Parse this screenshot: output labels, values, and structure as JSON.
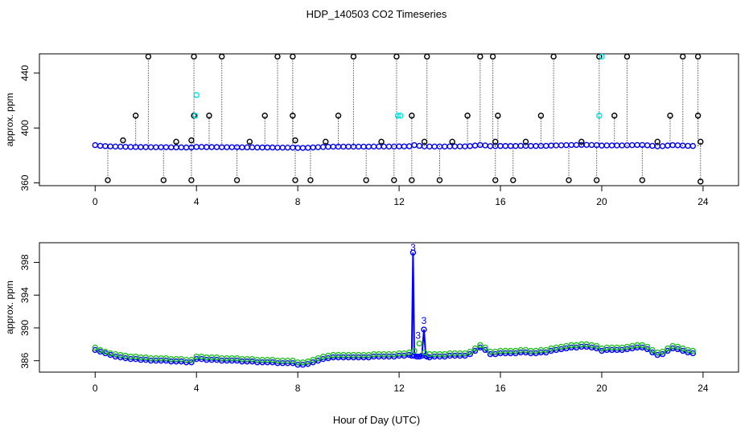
{
  "title": "HDP_140503  CO2 Timeseries",
  "xlabel": "Hour of Day (UTC)",
  "chart_data": [
    {
      "type": "scatter",
      "ylabel": "approx. ppm",
      "xlim": [
        -2.2,
        25.4
      ],
      "ylim": [
        358,
        454
      ],
      "xticks": [
        0,
        4,
        8,
        12,
        16,
        20,
        24
      ],
      "yticks": [
        360,
        400,
        440
      ],
      "series": [
        {
          "color": "#0000ff",
          "marker": "circle",
          "x": [
            0.0,
            0.2,
            0.4,
            0.6,
            0.8,
            1.0,
            1.2,
            1.4,
            1.6,
            1.8,
            2.0,
            2.2,
            2.4,
            2.6,
            2.8,
            3.0,
            3.2,
            3.4,
            3.6,
            3.8,
            4.0,
            4.2,
            4.4,
            4.6,
            4.8,
            5.0,
            5.2,
            5.4,
            5.6,
            5.8,
            6.0,
            6.2,
            6.4,
            6.6,
            6.8,
            7.0,
            7.2,
            7.4,
            7.6,
            7.8,
            8.0,
            8.2,
            8.4,
            8.6,
            8.8,
            9.0,
            9.2,
            9.4,
            9.6,
            9.8,
            10.0,
            10.2,
            10.4,
            10.6,
            10.8,
            11.0,
            11.2,
            11.4,
            11.6,
            11.8,
            12.0,
            12.2,
            12.4,
            12.6,
            12.8,
            13.0,
            13.2,
            13.4,
            13.6,
            13.8,
            14.0,
            14.2,
            14.4,
            14.6,
            14.8,
            15.0,
            15.2,
            15.4,
            15.6,
            15.8,
            16.0,
            16.2,
            16.4,
            16.6,
            16.8,
            17.0,
            17.2,
            17.4,
            17.6,
            17.8,
            18.0,
            18.2,
            18.4,
            18.6,
            18.8,
            19.0,
            19.2,
            19.4,
            19.6,
            19.8,
            20.0,
            20.2,
            20.4,
            20.6,
            20.8,
            21.0,
            21.2,
            21.4,
            21.6,
            21.8,
            22.0,
            22.2,
            22.4,
            22.6,
            22.8,
            23.0,
            23.2,
            23.4,
            23.6
          ],
          "y": [
            387.5,
            387.0,
            386.8,
            386.6,
            386.5,
            386.4,
            386.3,
            386.2,
            386.2,
            386.1,
            386.1,
            386.0,
            386.0,
            386.0,
            386.0,
            385.9,
            385.9,
            385.9,
            385.8,
            385.8,
            386.2,
            386.2,
            386.1,
            386.1,
            386.1,
            386.0,
            386.0,
            386.0,
            386.0,
            385.9,
            385.9,
            385.9,
            385.8,
            385.8,
            385.8,
            385.8,
            385.7,
            385.7,
            385.7,
            385.7,
            385.5,
            385.5,
            385.6,
            385.8,
            386.0,
            386.2,
            386.3,
            386.4,
            386.4,
            386.4,
            386.4,
            386.4,
            386.4,
            386.4,
            386.4,
            386.5,
            386.5,
            386.5,
            386.5,
            386.5,
            386.6,
            386.6,
            386.7,
            387.5,
            387.0,
            386.6,
            386.5,
            386.5,
            386.5,
            386.5,
            386.6,
            386.6,
            386.6,
            386.6,
            386.8,
            387.2,
            387.6,
            387.3,
            386.8,
            386.8,
            386.9,
            386.9,
            386.9,
            386.9,
            387.0,
            387.0,
            386.9,
            386.9,
            387.0,
            387.0,
            387.2,
            387.3,
            387.4,
            387.5,
            387.6,
            387.6,
            387.7,
            387.7,
            387.6,
            387.5,
            387.2,
            387.3,
            387.3,
            387.3,
            387.3,
            387.4,
            387.5,
            387.6,
            387.6,
            387.4,
            387.0,
            386.7,
            386.8,
            387.2,
            387.5,
            387.4,
            387.2,
            387.0,
            386.9
          ]
        },
        {
          "color": "#000000",
          "marker": "circle",
          "x": [
            0.5,
            1.1,
            1.6,
            2.1,
            2.7,
            3.2,
            3.8,
            3.8,
            3.9,
            3.9,
            4.5,
            5.0,
            5.6,
            6.1,
            6.7,
            7.2,
            7.8,
            7.8,
            7.9,
            7.9,
            8.5,
            9.1,
            9.6,
            10.2,
            10.7,
            11.3,
            11.8,
            11.9,
            12.5,
            12.5,
            13.0,
            13.1,
            13.6,
            14.1,
            14.7,
            15.2,
            15.7,
            15.8,
            15.8,
            15.9,
            16.5,
            17.0,
            17.6,
            18.1,
            18.7,
            19.2,
            19.8,
            19.9,
            20.5,
            21.0,
            21.6,
            22.2,
            22.7,
            23.2,
            23.8,
            23.8,
            23.9,
            23.9
          ],
          "y": [
            362,
            391,
            409,
            452,
            362,
            390,
            362,
            391,
            409,
            452,
            409,
            452,
            362,
            390,
            409,
            452,
            409,
            452,
            391,
            362,
            362,
            390,
            409,
            452,
            362,
            390,
            362,
            452,
            409,
            362,
            390,
            452,
            362,
            390,
            409,
            452,
            452,
            390,
            362,
            409,
            362,
            390,
            409,
            452,
            362,
            390,
            362,
            452,
            409,
            452,
            362,
            390,
            409,
            452,
            452,
            409,
            390,
            361
          ]
        },
        {
          "color": "#00e5e5",
          "marker": "circle",
          "x": [
            3.95,
            4.0,
            11.95,
            12.05,
            19.9,
            20.0
          ],
          "y": [
            409,
            424,
            409,
            409,
            409,
            452
          ]
        }
      ]
    },
    {
      "type": "line",
      "ylabel": "approx. ppm",
      "xlim": [
        -2.2,
        25.4
      ],
      "ylim": [
        384.6,
        400.4
      ],
      "xticks": [
        0,
        4,
        8,
        12,
        16,
        20,
        24
      ],
      "yticks": [
        386,
        390,
        394,
        398
      ],
      "annotations": [
        {
          "text": "3",
          "x": 12.55,
          "y": 399.2
        },
        {
          "text": "3",
          "x": 12.98,
          "y": 390.3
        },
        {
          "text": "3",
          "x": 12.75,
          "y": 388.5
        }
      ],
      "series": [
        {
          "color": "#0000ff",
          "marker": "circle",
          "x": [
            0.0,
            0.2,
            0.4,
            0.6,
            0.8,
            1.0,
            1.2,
            1.4,
            1.6,
            1.8,
            2.0,
            2.2,
            2.4,
            2.6,
            2.8,
            3.0,
            3.2,
            3.4,
            3.6,
            3.8,
            4.0,
            4.2,
            4.4,
            4.6,
            4.8,
            5.0,
            5.2,
            5.4,
            5.6,
            5.8,
            6.0,
            6.2,
            6.4,
            6.6,
            6.8,
            7.0,
            7.2,
            7.4,
            7.6,
            7.8,
            8.0,
            8.2,
            8.4,
            8.6,
            8.8,
            9.0,
            9.2,
            9.4,
            9.6,
            9.8,
            10.0,
            10.2,
            10.4,
            10.6,
            10.8,
            11.0,
            11.2,
            11.4,
            11.6,
            11.8,
            12.0,
            12.2,
            12.4,
            12.5,
            12.55,
            12.6,
            12.7,
            12.8,
            12.9,
            12.98,
            13.05,
            13.1,
            13.2,
            13.4,
            13.6,
            13.8,
            14.0,
            14.2,
            14.4,
            14.6,
            14.8,
            15.0,
            15.2,
            15.4,
            15.6,
            15.8,
            16.0,
            16.2,
            16.4,
            16.6,
            16.8,
            17.0,
            17.2,
            17.4,
            17.6,
            17.8,
            18.0,
            18.2,
            18.4,
            18.6,
            18.8,
            19.0,
            19.2,
            19.4,
            19.6,
            19.8,
            20.0,
            20.2,
            20.4,
            20.6,
            20.8,
            21.0,
            21.2,
            21.4,
            21.6,
            21.8,
            22.0,
            22.2,
            22.4,
            22.6,
            22.8,
            23.0,
            23.2,
            23.4,
            23.6
          ],
          "y": [
            387.3,
            387.1,
            386.9,
            386.7,
            386.5,
            386.4,
            386.3,
            386.2,
            386.2,
            386.1,
            386.1,
            386.0,
            386.0,
            386.0,
            386.0,
            385.9,
            385.9,
            385.9,
            385.8,
            385.8,
            386.2,
            386.2,
            386.1,
            386.1,
            386.1,
            386.0,
            386.0,
            386.0,
            386.0,
            385.9,
            385.9,
            385.9,
            385.8,
            385.8,
            385.8,
            385.8,
            385.7,
            385.7,
            385.7,
            385.7,
            385.5,
            385.5,
            385.6,
            385.8,
            386.0,
            386.2,
            386.3,
            386.4,
            386.4,
            386.4,
            386.4,
            386.4,
            386.4,
            386.4,
            386.4,
            386.5,
            386.5,
            386.5,
            386.5,
            386.5,
            386.6,
            386.6,
            386.7,
            386.6,
            399.2,
            386.6,
            386.5,
            386.5,
            386.6,
            389.8,
            386.6,
            386.5,
            386.4,
            386.5,
            386.5,
            386.5,
            386.6,
            386.6,
            386.6,
            386.6,
            386.8,
            387.2,
            387.6,
            387.3,
            386.8,
            386.8,
            386.9,
            386.9,
            386.9,
            386.9,
            387.0,
            387.0,
            386.9,
            386.9,
            387.0,
            387.0,
            387.2,
            387.3,
            387.4,
            387.5,
            387.6,
            387.6,
            387.7,
            387.7,
            387.6,
            387.5,
            387.2,
            387.3,
            387.3,
            387.3,
            387.3,
            387.4,
            387.5,
            387.6,
            387.6,
            387.4,
            387.0,
            386.7,
            386.8,
            387.2,
            387.5,
            387.4,
            387.2,
            387.0,
            386.9
          ]
        },
        {
          "color": "#22c122",
          "marker": "circle",
          "x": [
            0.0,
            0.2,
            0.4,
            0.6,
            0.8,
            1.0,
            1.2,
            1.4,
            1.6,
            1.8,
            2.0,
            2.2,
            2.4,
            2.6,
            2.8,
            3.0,
            3.2,
            3.4,
            3.6,
            3.8,
            4.0,
            4.2,
            4.4,
            4.6,
            4.8,
            5.0,
            5.2,
            5.4,
            5.6,
            5.8,
            6.0,
            6.2,
            6.4,
            6.6,
            6.8,
            7.0,
            7.2,
            7.4,
            7.6,
            7.8,
            8.0,
            8.2,
            8.4,
            8.6,
            8.8,
            9.0,
            9.2,
            9.4,
            9.6,
            9.8,
            10.0,
            10.2,
            10.4,
            10.6,
            10.8,
            11.0,
            11.2,
            11.4,
            11.6,
            11.8,
            12.0,
            12.2,
            12.4,
            12.6,
            12.8,
            13.0,
            13.2,
            13.4,
            13.6,
            13.8,
            14.0,
            14.2,
            14.4,
            14.6,
            14.8,
            15.0,
            15.2,
            15.4,
            15.6,
            15.8,
            16.0,
            16.2,
            16.4,
            16.6,
            16.8,
            17.0,
            17.2,
            17.4,
            17.6,
            17.8,
            18.0,
            18.2,
            18.4,
            18.6,
            18.8,
            19.0,
            19.2,
            19.4,
            19.6,
            19.8,
            20.0,
            20.2,
            20.4,
            20.6,
            20.8,
            21.0,
            21.2,
            21.4,
            21.6,
            21.8,
            22.0,
            22.2,
            22.4,
            22.6,
            22.8,
            23.0,
            23.2,
            23.4,
            23.6
          ],
          "y": [
            387.6,
            387.3,
            387.1,
            386.9,
            386.8,
            386.7,
            386.6,
            386.5,
            386.5,
            386.4,
            386.4,
            386.3,
            386.3,
            386.3,
            386.3,
            386.2,
            386.2,
            386.2,
            386.1,
            386.1,
            386.5,
            386.5,
            386.4,
            386.4,
            386.4,
            386.3,
            386.3,
            386.3,
            386.3,
            386.2,
            386.2,
            386.2,
            386.1,
            386.1,
            386.1,
            386.1,
            386.0,
            386.0,
            386.0,
            386.0,
            385.8,
            385.8,
            385.9,
            386.1,
            386.3,
            386.5,
            386.6,
            386.7,
            386.7,
            386.7,
            386.7,
            386.7,
            386.7,
            386.7,
            386.7,
            386.8,
            386.8,
            386.8,
            386.8,
            386.8,
            386.9,
            386.9,
            387.0,
            387.2,
            388.1,
            387.0,
            386.8,
            386.8,
            386.8,
            386.8,
            386.9,
            386.9,
            386.9,
            386.9,
            387.1,
            387.5,
            387.9,
            387.6,
            387.1,
            387.1,
            387.2,
            387.2,
            387.2,
            387.2,
            387.3,
            387.3,
            387.2,
            387.2,
            387.3,
            387.3,
            387.5,
            387.6,
            387.7,
            387.8,
            387.9,
            387.9,
            388.0,
            388.0,
            387.9,
            387.8,
            387.5,
            387.6,
            387.6,
            387.6,
            387.6,
            387.7,
            387.8,
            387.9,
            387.9,
            387.7,
            387.3,
            387.0,
            387.1,
            387.5,
            387.8,
            387.7,
            387.5,
            387.3,
            387.2
          ]
        }
      ]
    }
  ]
}
